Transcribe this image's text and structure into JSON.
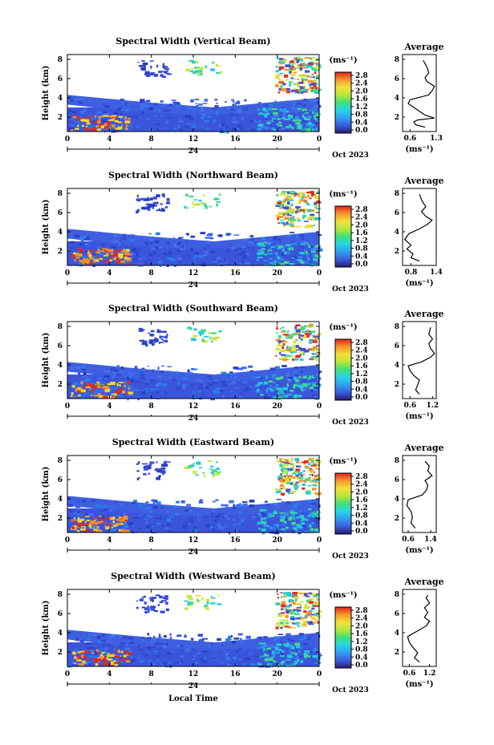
{
  "chart_data": [
    {
      "type": "heatmap",
      "title": "Spectral Width (Vertical Beam)",
      "ylabel": "Height (km)",
      "xticks": [
        "0",
        "4",
        "8",
        "12",
        "16",
        "20",
        "0"
      ],
      "yticks": [
        "2",
        "4",
        "6",
        "8"
      ],
      "date_day": "24",
      "date_label": "Oct 2023",
      "colorbar_unit": "(ms⁻¹)",
      "colorbar_ticks": [
        "0.0",
        "0.4",
        "0.8",
        "1.2",
        "1.6",
        "2.0",
        "2.4",
        "2.8"
      ],
      "average": {
        "title": "Average",
        "xticks": [
          "0.6",
          "1.3"
        ],
        "xlim": [
          0.4,
          1.3
        ],
        "xlabel": "(ms⁻¹)",
        "profile": [
          [
            1.0,
            0.95
          ],
          [
            0.75,
            1.2
          ],
          [
            0.7,
            1.5
          ],
          [
            0.8,
            1.7
          ],
          [
            1.25,
            1.9
          ],
          [
            1.0,
            2.2
          ],
          [
            0.85,
            2.6
          ],
          [
            0.7,
            3.0
          ],
          [
            0.55,
            3.4
          ],
          [
            0.6,
            3.8
          ],
          [
            1.1,
            4.3
          ],
          [
            1.2,
            4.8
          ],
          [
            1.25,
            5.2
          ],
          [
            1.05,
            5.7
          ],
          [
            1.0,
            6.1
          ],
          [
            1.1,
            6.6
          ],
          [
            1.05,
            7.2
          ],
          [
            0.95,
            7.9
          ]
        ]
      }
    },
    {
      "type": "heatmap",
      "title": "Spectral Width (Northward Beam)",
      "ylabel": "Height (km)",
      "xticks": [
        "0",
        "4",
        "8",
        "12",
        "16",
        "20",
        "0"
      ],
      "yticks": [
        "2",
        "4",
        "6",
        "8"
      ],
      "date_day": "24",
      "date_label": "Oct 2023",
      "colorbar_unit": "(ms⁻¹)",
      "colorbar_ticks": [
        "0.0",
        "0.4",
        "0.8",
        "1.2",
        "1.6",
        "2.0",
        "2.4",
        "2.8"
      ],
      "average": {
        "title": "Average",
        "xticks": [
          "0.8",
          "1.4"
        ],
        "xlim": [
          0.6,
          1.4
        ],
        "xlabel": "(ms⁻¹)",
        "profile": [
          [
            1.0,
            0.95
          ],
          [
            0.8,
            1.3
          ],
          [
            0.85,
            1.7
          ],
          [
            0.7,
            2.2
          ],
          [
            0.8,
            2.6
          ],
          [
            0.65,
            3.2
          ],
          [
            0.75,
            3.8
          ],
          [
            1.0,
            4.3
          ],
          [
            1.2,
            4.8
          ],
          [
            1.3,
            5.2
          ],
          [
            1.15,
            5.6
          ],
          [
            1.05,
            6.1
          ],
          [
            1.15,
            6.6
          ],
          [
            1.05,
            7.3
          ],
          [
            1.0,
            7.9
          ]
        ]
      }
    },
    {
      "type": "heatmap",
      "title": "Spectral Width (Southward Beam)",
      "ylabel": "Height (km)",
      "xticks": [
        "0",
        "4",
        "8",
        "12",
        "16",
        "20",
        "0"
      ],
      "yticks": [
        "2",
        "4",
        "6",
        "8"
      ],
      "date_day": "24",
      "date_label": "Oct 2023",
      "colorbar_unit": "(ms⁻¹)",
      "colorbar_ticks": [
        "0.0",
        "0.4",
        "0.8",
        "1.2",
        "1.6",
        "2.0",
        "2.4",
        "2.8"
      ],
      "average": {
        "title": "Average",
        "xticks": [
          "0.6",
          "1.2"
        ],
        "xlim": [
          0.4,
          1.3
        ],
        "xlabel": "(ms⁻¹)",
        "profile": [
          [
            0.85,
            0.95
          ],
          [
            0.75,
            1.4
          ],
          [
            0.8,
            1.9
          ],
          [
            0.85,
            2.4
          ],
          [
            0.7,
            2.9
          ],
          [
            0.6,
            3.4
          ],
          [
            0.55,
            3.9
          ],
          [
            0.9,
            4.3
          ],
          [
            1.15,
            4.8
          ],
          [
            1.25,
            5.2
          ],
          [
            1.15,
            5.7
          ],
          [
            1.1,
            6.2
          ],
          [
            1.2,
            6.7
          ],
          [
            1.1,
            7.2
          ],
          [
            1.15,
            7.9
          ]
        ]
      }
    },
    {
      "type": "heatmap",
      "title": "Spectral Width (Eastward Beam)",
      "ylabel": "Height (km)",
      "xticks": [
        "0",
        "4",
        "8",
        "12",
        "16",
        "20",
        "0"
      ],
      "yticks": [
        "2",
        "4",
        "6",
        "8"
      ],
      "date_day": "24",
      "date_label": "Oct 2023",
      "colorbar_unit": "(ms⁻¹)",
      "colorbar_ticks": [
        "0.0",
        "0.4",
        "0.8",
        "1.2",
        "1.6",
        "2.0",
        "2.4",
        "2.8"
      ],
      "average": {
        "title": "Average",
        "xticks": [
          "0.6",
          "1.4"
        ],
        "xlim": [
          0.4,
          1.6
        ],
        "xlabel": "(ms⁻¹)",
        "profile": [
          [
            0.85,
            0.95
          ],
          [
            0.7,
            1.5
          ],
          [
            0.75,
            2.1
          ],
          [
            0.7,
            2.7
          ],
          [
            0.55,
            3.3
          ],
          [
            0.6,
            3.9
          ],
          [
            1.1,
            4.4
          ],
          [
            1.25,
            4.9
          ],
          [
            1.3,
            5.4
          ],
          [
            1.2,
            5.9
          ],
          [
            1.45,
            6.4
          ],
          [
            1.3,
            6.9
          ],
          [
            1.35,
            7.4
          ],
          [
            1.2,
            7.9
          ]
        ]
      }
    },
    {
      "type": "heatmap",
      "title": "Spectral Width (Westward Beam)",
      "ylabel": "Height (km)",
      "xlabel": "Local Time",
      "xticks": [
        "0",
        "4",
        "8",
        "12",
        "16",
        "20",
        "0"
      ],
      "yticks": [
        "2",
        "4",
        "6",
        "8"
      ],
      "date_day": "24",
      "date_label": "Oct 2023",
      "colorbar_unit": "(ms⁻¹)",
      "colorbar_ticks": [
        "0.0",
        "0.4",
        "0.8",
        "1.2",
        "1.6",
        "2.0",
        "2.4",
        "2.8"
      ],
      "average": {
        "title": "Average",
        "xticks": [
          "0.6",
          "1.2"
        ],
        "xlim": [
          0.4,
          1.4
        ],
        "xlabel": "(ms⁻¹)",
        "profile": [
          [
            0.9,
            0.95
          ],
          [
            0.75,
            1.4
          ],
          [
            0.85,
            1.9
          ],
          [
            0.7,
            2.5
          ],
          [
            0.6,
            3.0
          ],
          [
            0.55,
            3.6
          ],
          [
            0.85,
            4.2
          ],
          [
            1.1,
            4.7
          ],
          [
            1.2,
            5.2
          ],
          [
            1.05,
            5.6
          ],
          [
            1.15,
            6.1
          ],
          [
            1.05,
            6.6
          ],
          [
            1.2,
            7.1
          ],
          [
            1.1,
            7.6
          ],
          [
            1.15,
            7.9
          ]
        ]
      }
    }
  ]
}
